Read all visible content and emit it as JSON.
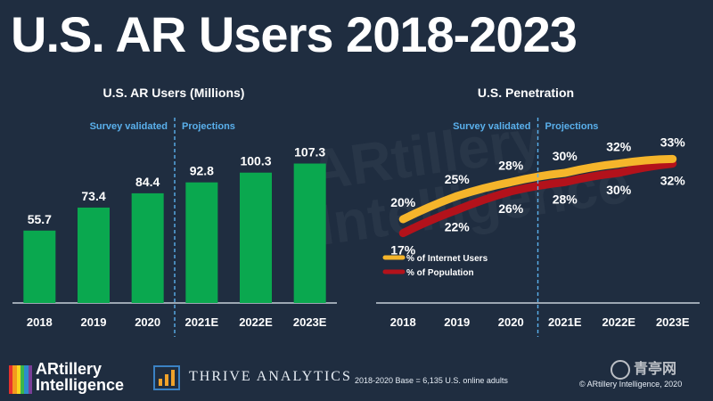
{
  "page": {
    "title": "U.S. AR Users 2018-2023",
    "background": "#1f2d40"
  },
  "chart_data": [
    {
      "type": "bar",
      "title": "U.S. AR Users (Millions)",
      "categories": [
        "2018",
        "2019",
        "2020",
        "2021E",
        "2022E",
        "2023E"
      ],
      "values": [
        55.7,
        73.4,
        84.4,
        92.8,
        100.3,
        107.3
      ],
      "value_labels": [
        "55.7",
        "73.4",
        "84.4",
        "92.8",
        "100.3",
        "107.3"
      ],
      "ylim": [
        0,
        120
      ],
      "grid": false,
      "bar_color": "#0aa84f",
      "annotations": {
        "left": "Survey validated",
        "right": "Projections"
      },
      "divider_after_category": "2020",
      "annotation_color": "#5ab0ec"
    },
    {
      "type": "line",
      "title": "U.S. Penetration",
      "categories": [
        "2018",
        "2019",
        "2020",
        "2021E",
        "2022E",
        "2023E"
      ],
      "ylim": [
        0,
        40
      ],
      "grid": false,
      "legend_position": "bottom-left",
      "series": [
        {
          "name": "% of Internet Users",
          "values": [
            20,
            25,
            28,
            30,
            32,
            33
          ],
          "labels": [
            "20%",
            "25%",
            "28%",
            "30%",
            "32%",
            "33%"
          ],
          "color": "#f5b52b",
          "label_side": "above"
        },
        {
          "name": "% of Population",
          "values": [
            17,
            22,
            26,
            28,
            30,
            32
          ],
          "labels": [
            "17%",
            "22%",
            "26%",
            "28%",
            "30%",
            "32%"
          ],
          "color": "#b3121b",
          "label_side": "below"
        }
      ],
      "annotations": {
        "left": "Survey validated",
        "right": "Projections"
      },
      "divider_after_category": "2020",
      "annotation_color": "#5ab0ec"
    }
  ],
  "watermark": "ARtillery\nIntelligence",
  "footer": {
    "logo_text_line1": "ARtillery",
    "logo_text_line2": "Intelligence",
    "logo_colors": [
      "#e5322d",
      "#f39a1e",
      "#f7d81f",
      "#3cb64a",
      "#2c8ccb",
      "#7a3f98"
    ],
    "thrive_text": "THRIVE ANALYTICS",
    "base_note": "2018-2020 Base = 6,135 U.S. online adults",
    "copyright": "© ARtillery Intelligence, 2020",
    "corner_logo": "青亭网"
  }
}
